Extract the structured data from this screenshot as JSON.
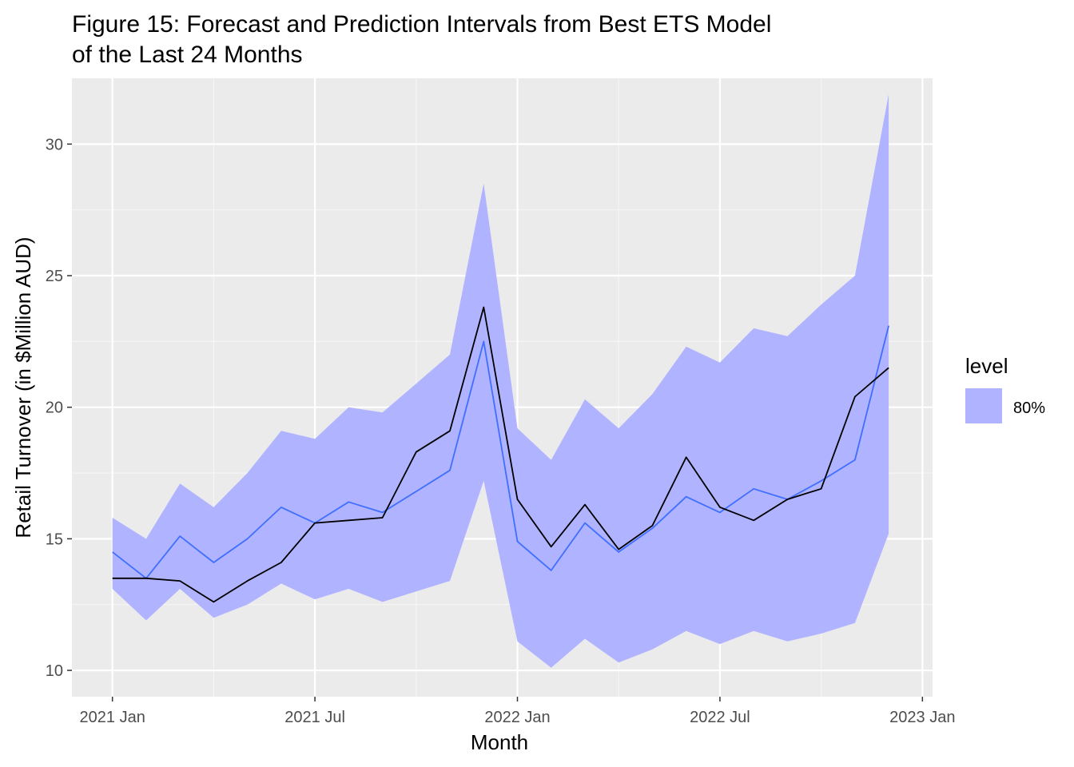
{
  "chart_data": {
    "type": "line",
    "title_line1": "Figure 15: Forecast and Prediction Intervals from Best ETS Model",
    "title_line2": "of the Last 24 Months",
    "xlabel": "Month",
    "ylabel": "Retail Turnover (in $Million AUD)",
    "x_ticks": [
      "2021 Jan",
      "2021 Jul",
      "2022 Jan",
      "2022 Jul",
      "2023 Jan"
    ],
    "y_ticks": [
      10,
      15,
      20,
      25,
      30
    ],
    "ylim": [
      9.0,
      32.5
    ],
    "xlim_months": [
      -1.2,
      24.3
    ],
    "grid": true,
    "legend": {
      "position": "right",
      "title": "level",
      "entries": [
        {
          "label": "80%",
          "color": "#b0b3ff"
        }
      ]
    },
    "x": [
      "2021 Jan",
      "2021 Feb",
      "2021 Mar",
      "2021 Apr",
      "2021 May",
      "2021 Jun",
      "2021 Jul",
      "2021 Aug",
      "2021 Sep",
      "2021 Oct",
      "2021 Nov",
      "2021 Dec",
      "2022 Jan",
      "2022 Feb",
      "2022 Mar",
      "2022 Apr",
      "2022 May",
      "2022 Jun",
      "2022 Jul",
      "2022 Aug",
      "2022 Sep",
      "2022 Oct",
      "2022 Nov",
      "2022 Dec"
    ],
    "interval_80": {
      "lower": [
        13.1,
        11.9,
        13.1,
        12.0,
        12.5,
        13.3,
        12.7,
        13.1,
        12.6,
        13.0,
        13.4,
        17.2,
        11.1,
        10.1,
        11.2,
        10.3,
        10.8,
        11.5,
        11.0,
        11.5,
        11.1,
        11.4,
        11.8,
        15.2
      ],
      "upper": [
        15.8,
        15.0,
        17.1,
        16.2,
        17.5,
        19.1,
        18.8,
        20.0,
        19.8,
        20.9,
        22.0,
        28.5,
        19.2,
        18.0,
        20.3,
        19.2,
        20.5,
        22.3,
        21.7,
        23.0,
        22.7,
        23.9,
        25.0,
        31.9
      ]
    },
    "series": [
      {
        "name": "",
        "color": "#3f6fff",
        "values": [
          14.5,
          13.5,
          15.1,
          14.1,
          15.0,
          16.2,
          15.6,
          16.4,
          16.0,
          16.8,
          17.6,
          22.5,
          14.9,
          13.8,
          15.6,
          14.5,
          15.4,
          16.6,
          16.0,
          16.9,
          16.5,
          17.2,
          18.0,
          23.1
        ]
      },
      {
        "name": "",
        "color": "#000000",
        "values": [
          13.5,
          13.5,
          13.4,
          12.6,
          13.4,
          14.1,
          15.6,
          15.7,
          15.8,
          18.3,
          19.1,
          23.8,
          16.5,
          14.7,
          16.3,
          14.6,
          15.5,
          18.1,
          16.2,
          15.7,
          16.5,
          16.9,
          20.4,
          21.5
        ]
      }
    ],
    "colors": {
      "panel_bg": "#ebebeb",
      "grid_major": "#ffffff",
      "grid_minor": "#f5f5f5",
      "ribbon": "#b0b3ff",
      "tick": "#333333"
    }
  }
}
